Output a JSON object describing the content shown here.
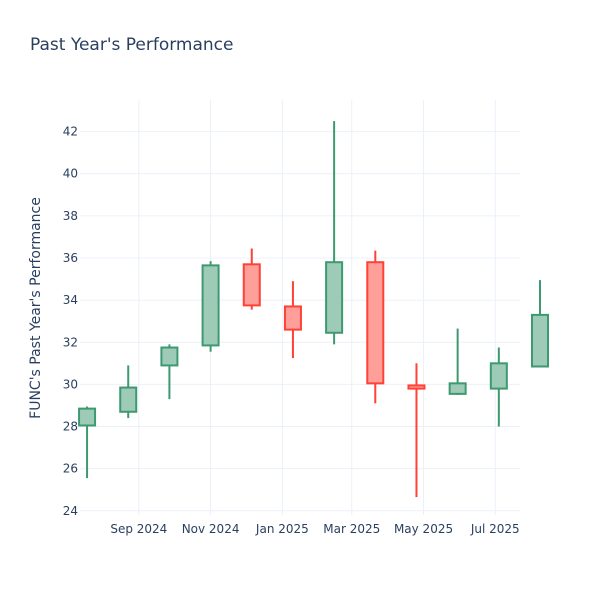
{
  "chart_data": {
    "type": "candlestick",
    "title": "Past Year's Performance",
    "xlabel": "",
    "ylabel": "FUNC's Past Year's Performance",
    "ylim": [
      23.8,
      43.5
    ],
    "xlim": [
      "2024-07-13",
      "2025-07-22"
    ],
    "grid": true,
    "legend": "none",
    "colors": {
      "increasing": "#3d9970",
      "increasing_fill": "#9ecbb7",
      "decreasing": "#ff4136",
      "decreasing_fill": "#ff9f9a"
    },
    "y_ticks": [
      24,
      26,
      28,
      30,
      32,
      34,
      36,
      38,
      40,
      42
    ],
    "x_ticks": [
      {
        "date": "2024-09-01",
        "label": "Sep 2024"
      },
      {
        "date": "2024-11-01",
        "label": "Nov 2024"
      },
      {
        "date": "2025-01-01",
        "label": "Jan 2025"
      },
      {
        "date": "2025-03-01",
        "label": "Mar 2025"
      },
      {
        "date": "2025-05-01",
        "label": "May 2025"
      },
      {
        "date": "2025-07-01",
        "label": "Jul 2025"
      }
    ],
    "candles": [
      {
        "date": "2024-07-19",
        "open": 28.05,
        "high": 28.95,
        "low": 25.55,
        "close": 28.85
      },
      {
        "date": "2024-08-23",
        "open": 28.7,
        "high": 30.9,
        "low": 28.4,
        "close": 29.85
      },
      {
        "date": "2024-09-27",
        "open": 30.9,
        "high": 31.9,
        "low": 29.3,
        "close": 31.75
      },
      {
        "date": "2024-11-01",
        "open": 31.85,
        "high": 35.85,
        "low": 31.55,
        "close": 35.65
      },
      {
        "date": "2024-12-06",
        "open": 35.7,
        "high": 36.45,
        "low": 33.55,
        "close": 33.75
      },
      {
        "date": "2025-01-10",
        "open": 33.7,
        "high": 34.9,
        "low": 31.25,
        "close": 32.6
      },
      {
        "date": "2025-02-14",
        "open": 32.45,
        "high": 42.5,
        "low": 31.9,
        "close": 35.8
      },
      {
        "date": "2025-03-21",
        "open": 35.8,
        "high": 36.35,
        "low": 29.1,
        "close": 30.05
      },
      {
        "date": "2025-04-25",
        "open": 29.95,
        "high": 31.0,
        "low": 24.65,
        "close": 29.8
      },
      {
        "date": "2025-05-30",
        "open": 29.55,
        "high": 32.65,
        "low": 29.5,
        "close": 30.05
      },
      {
        "date": "2025-07-04",
        "open": 29.8,
        "high": 31.75,
        "low": 28.0,
        "close": 31.0
      },
      {
        "date": "2025-08-08",
        "open": 30.85,
        "high": 34.95,
        "low": 30.85,
        "close": 33.3
      }
    ]
  }
}
